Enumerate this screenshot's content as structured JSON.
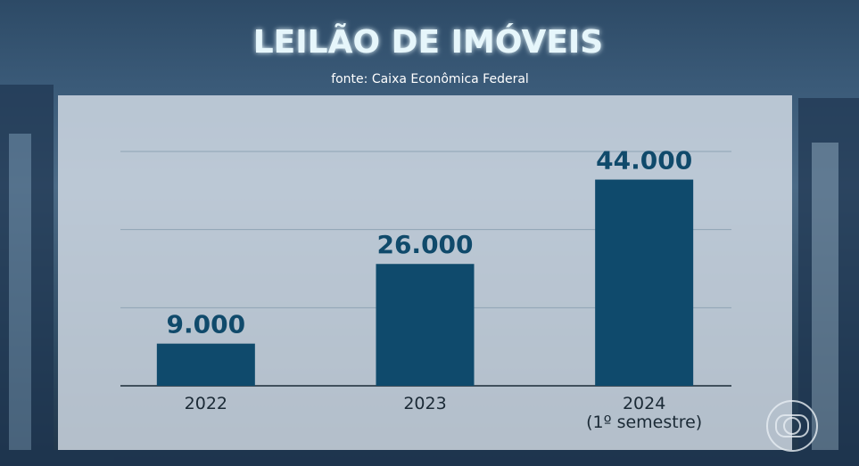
{
  "chart_data": {
    "type": "bar",
    "title": "LEILÃO DE IMÓVEIS",
    "subtitle": "fonte: Caixa Econômica Federal",
    "categories": [
      "2022",
      "2023",
      "2024\n(1º semestre)"
    ],
    "values": [
      9000,
      26000,
      44000
    ],
    "value_labels": [
      "9.000",
      "26.000",
      "44.000"
    ],
    "color": "#0f4a6c",
    "ylim": [
      0,
      50000
    ],
    "yticks": [
      0,
      16667,
      33333,
      50000
    ],
    "grid": true
  }
}
